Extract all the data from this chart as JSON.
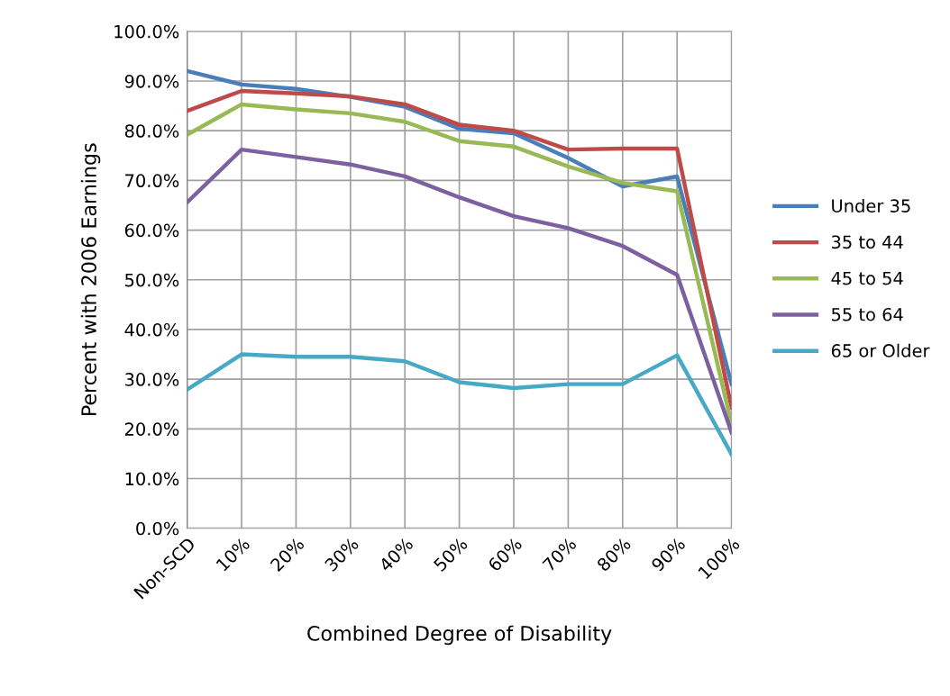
{
  "chart_data": {
    "type": "line",
    "xlabel": "Combined Degree of Disability",
    "ylabel": "Percent with 2006 Earnings",
    "categories": [
      "Non-SCD",
      "10%",
      "20%",
      "30%",
      "40%",
      "50%",
      "60%",
      "70%",
      "80%",
      "90%",
      "100%"
    ],
    "series": [
      {
        "name": "Under 35",
        "color": "#4a7ebb",
        "values": [
          92.0,
          89.3,
          88.4,
          86.8,
          84.8,
          80.4,
          79.5,
          74.5,
          68.8,
          70.8,
          29.0
        ]
      },
      {
        "name": "35 to 44",
        "color": "#be4b48",
        "values": [
          84.0,
          88.0,
          87.5,
          86.9,
          85.3,
          81.2,
          80.0,
          76.2,
          76.4,
          76.4,
          24.3
        ]
      },
      {
        "name": "45 to 54",
        "color": "#98b954",
        "values": [
          79.2,
          85.3,
          84.3,
          83.5,
          81.8,
          77.9,
          76.8,
          72.8,
          69.5,
          67.8,
          21.0
        ]
      },
      {
        "name": "55 to 64",
        "color": "#7d60a0",
        "values": [
          65.6,
          76.2,
          74.7,
          73.2,
          70.8,
          66.6,
          62.8,
          60.4,
          56.8,
          51.0,
          19.3
        ]
      },
      {
        "name": "65 or Older",
        "color": "#46aac5",
        "values": [
          27.9,
          35.0,
          34.5,
          34.5,
          33.6,
          29.4,
          28.2,
          29.0,
          29.0,
          34.8,
          14.9
        ]
      }
    ],
    "ylim": [
      0,
      100
    ],
    "yticks": [
      {
        "value": 0,
        "label": "0.0%"
      },
      {
        "value": 10,
        "label": "10.0%"
      },
      {
        "value": 20,
        "label": "20.0%"
      },
      {
        "value": 30,
        "label": "30.0%"
      },
      {
        "value": 40,
        "label": "40.0%"
      },
      {
        "value": 50,
        "label": "50.0%"
      },
      {
        "value": 60,
        "label": "60.0%"
      },
      {
        "value": 70,
        "label": "70.0%"
      },
      {
        "value": 80,
        "label": "80.0%"
      },
      {
        "value": 90,
        "label": "90.0%"
      },
      {
        "value": 100,
        "label": "100.0%"
      }
    ],
    "grid": true,
    "legend": "right",
    "marker": "none",
    "line_style": "solid"
  }
}
